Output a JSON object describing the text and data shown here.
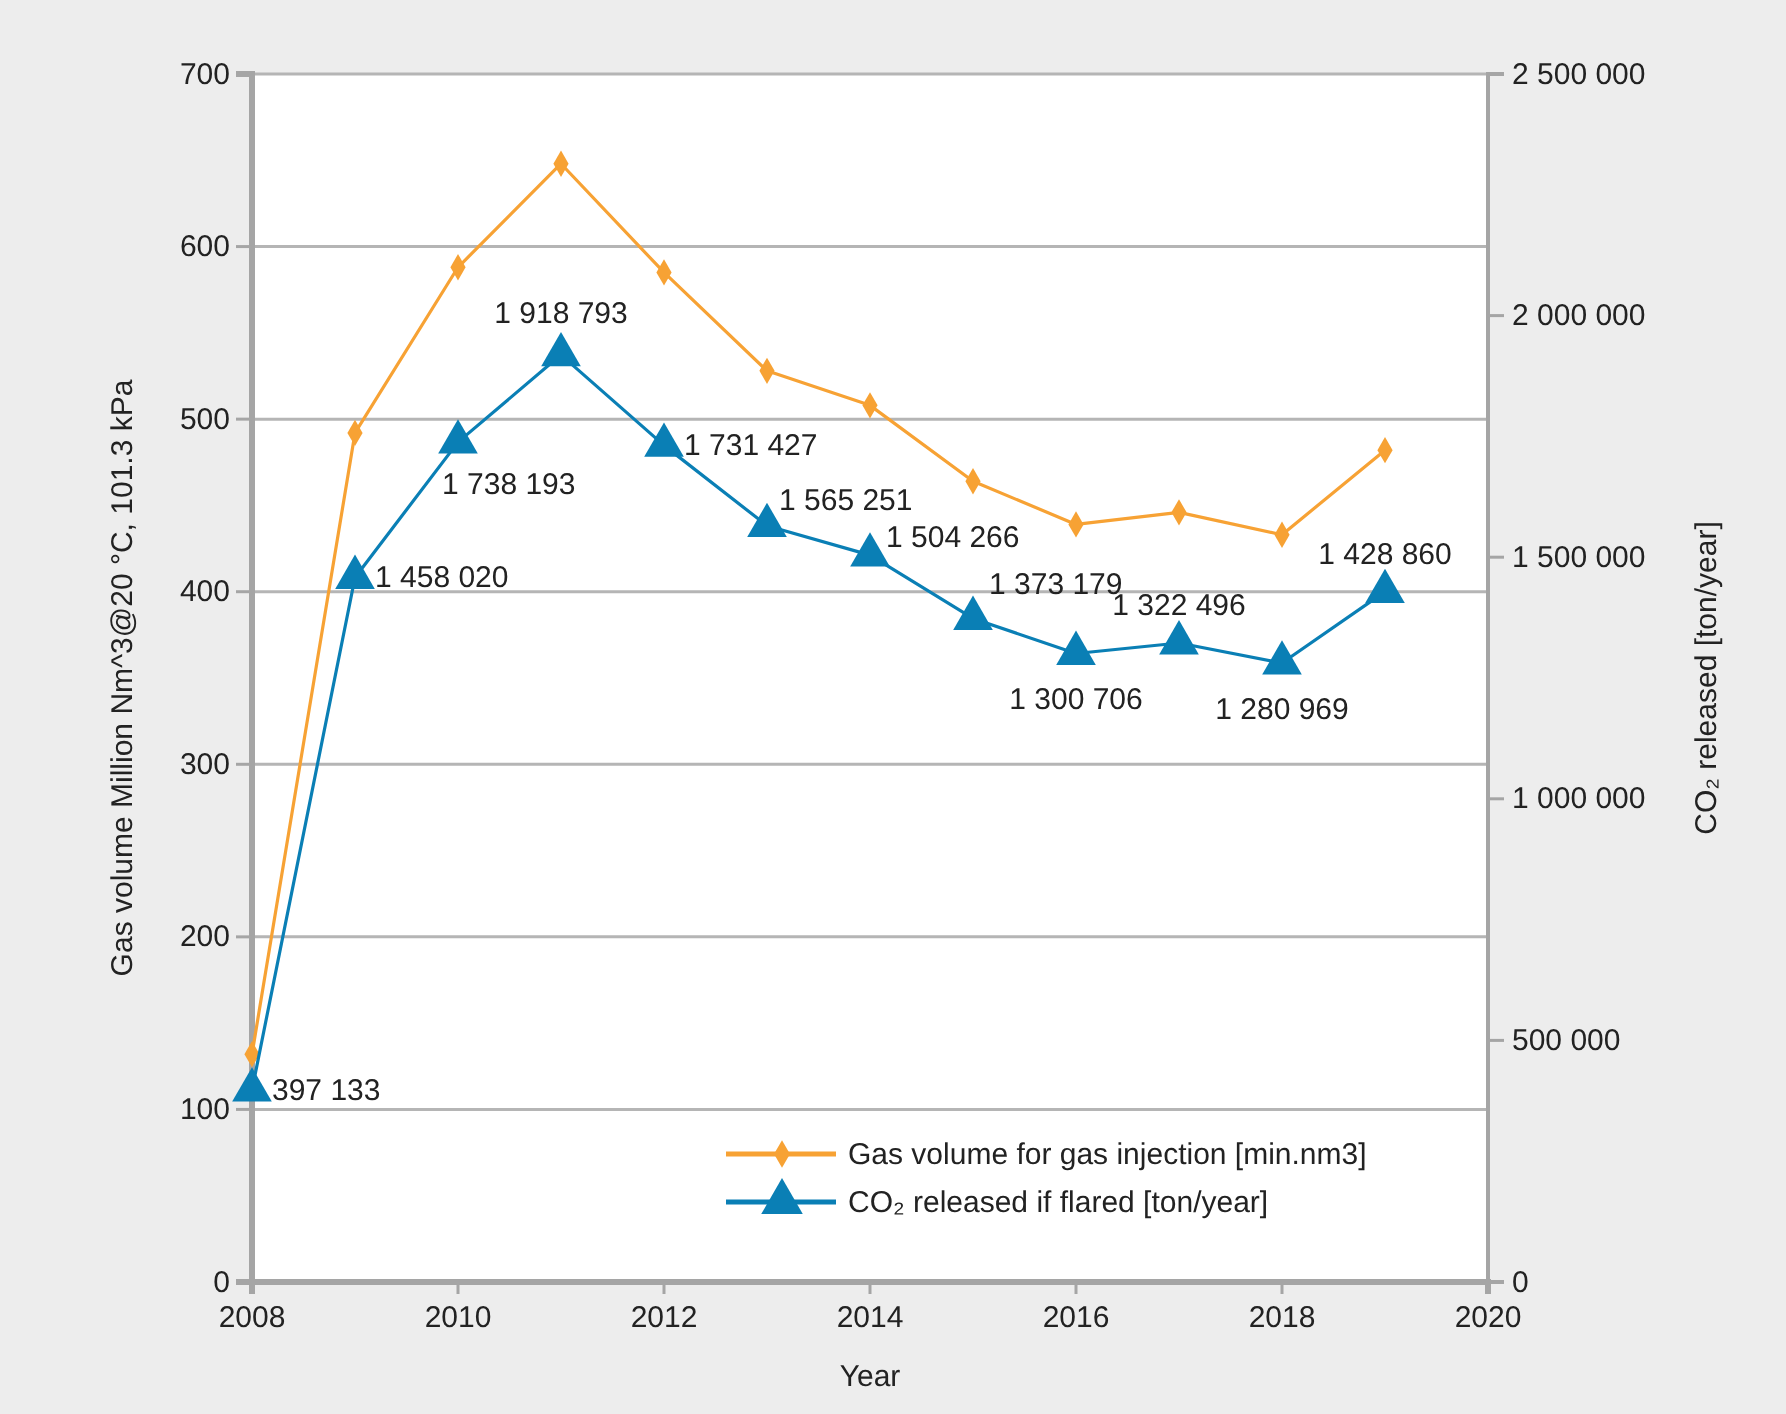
{
  "chart_data": {
    "type": "line",
    "xlabel": "Year",
    "ylabel": "Gas volume Million Nm^3@20 °C, 101.3 kPa",
    "y2label": "CO₂ released [ton/year]",
    "x": [
      2008,
      2009,
      2010,
      2011,
      2012,
      2013,
      2014,
      2015,
      2016,
      2017,
      2018,
      2019
    ],
    "xlim": [
      2008,
      2020
    ],
    "xticks": [
      2008,
      2010,
      2012,
      2014,
      2016,
      2018,
      2020
    ],
    "ylim": [
      0,
      700
    ],
    "yticks": [
      0,
      100,
      200,
      300,
      400,
      500,
      600,
      700
    ],
    "y2lim": [
      0,
      2500000
    ],
    "y2ticks": [
      {
        "value": 0,
        "label": "0"
      },
      {
        "value": 500000,
        "label": "500 000"
      },
      {
        "value": 1000000,
        "label": "1 000 000"
      },
      {
        "value": 1500000,
        "label": "1 500 000"
      },
      {
        "value": 2000000,
        "label": "2 000 000"
      },
      {
        "value": 2500000,
        "label": "2 500 000"
      }
    ],
    "grid": "y",
    "legend": "bottom right",
    "series": [
      {
        "name": "Gas volume for gas injection [min.nm3]",
        "color": "#f7a234",
        "marker": "diamond",
        "values": [
          132,
          492,
          588,
          648,
          585,
          528,
          508,
          464,
          439,
          446,
          433,
          482
        ]
      },
      {
        "name": "CO₂ released if flared [ton/year]",
        "color": "#0a7fb5",
        "marker": "triangle",
        "axis": "y2",
        "values": [
          397133,
          1458020,
          1738193,
          1918793,
          1731427,
          1565251,
          1504266,
          1373179,
          1300706,
          1322496,
          1280969,
          1428860
        ],
        "value_labels": [
          "397 133",
          "1 458 020",
          "1 738 193",
          "1 918 793",
          "1 731 427",
          "1 565 251",
          "1 504 266",
          "1 373 179",
          "1 300 706",
          "1 322 496",
          "1 280 969",
          "1 428 860"
        ]
      }
    ]
  }
}
